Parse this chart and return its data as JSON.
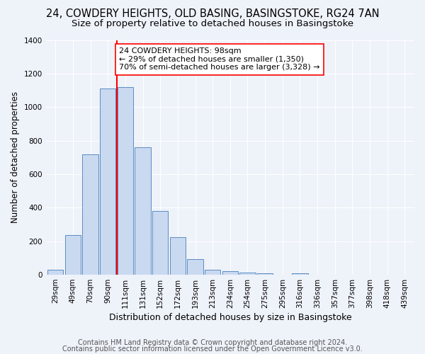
{
  "title1": "24, COWDERY HEIGHTS, OLD BASING, BASINGSTOKE, RG24 7AN",
  "title2": "Size of property relative to detached houses in Basingstoke",
  "xlabel": "Distribution of detached houses by size in Basingstoke",
  "ylabel": "Number of detached properties",
  "categories": [
    "29sqm",
    "49sqm",
    "70sqm",
    "90sqm",
    "111sqm",
    "131sqm",
    "152sqm",
    "172sqm",
    "193sqm",
    "213sqm",
    "234sqm",
    "254sqm",
    "275sqm",
    "295sqm",
    "316sqm",
    "336sqm",
    "357sqm",
    "377sqm",
    "398sqm",
    "418sqm",
    "439sqm"
  ],
  "bar_values": [
    30,
    235,
    720,
    1110,
    1120,
    760,
    380,
    225,
    95,
    30,
    22,
    15,
    10,
    0,
    10,
    0,
    0,
    0,
    0,
    0,
    0
  ],
  "bar_color": "#c9d9f0",
  "bar_edge_color": "#5a8cc2",
  "vline_color": "red",
  "annotation_line1": "24 COWDERY HEIGHTS: 98sqm",
  "annotation_line2": "← 29% of detached houses are smaller (1,350)",
  "annotation_line3": "70% of semi-detached houses are larger (3,328) →",
  "annotation_box_color": "white",
  "annotation_box_edge_color": "red",
  "ylim": [
    0,
    1400
  ],
  "yticks": [
    0,
    200,
    400,
    600,
    800,
    1000,
    1200,
    1400
  ],
  "footer1": "Contains HM Land Registry data © Crown copyright and database right 2024.",
  "footer2": "Contains public sector information licensed under the Open Government Licence v3.0.",
  "background_color": "#eef2f9",
  "grid_color": "white",
  "title1_fontsize": 10.5,
  "title2_fontsize": 9.5,
  "xlabel_fontsize": 9,
  "ylabel_fontsize": 8.5,
  "tick_fontsize": 7.5,
  "annotation_fontsize": 8,
  "footer_fontsize": 7
}
